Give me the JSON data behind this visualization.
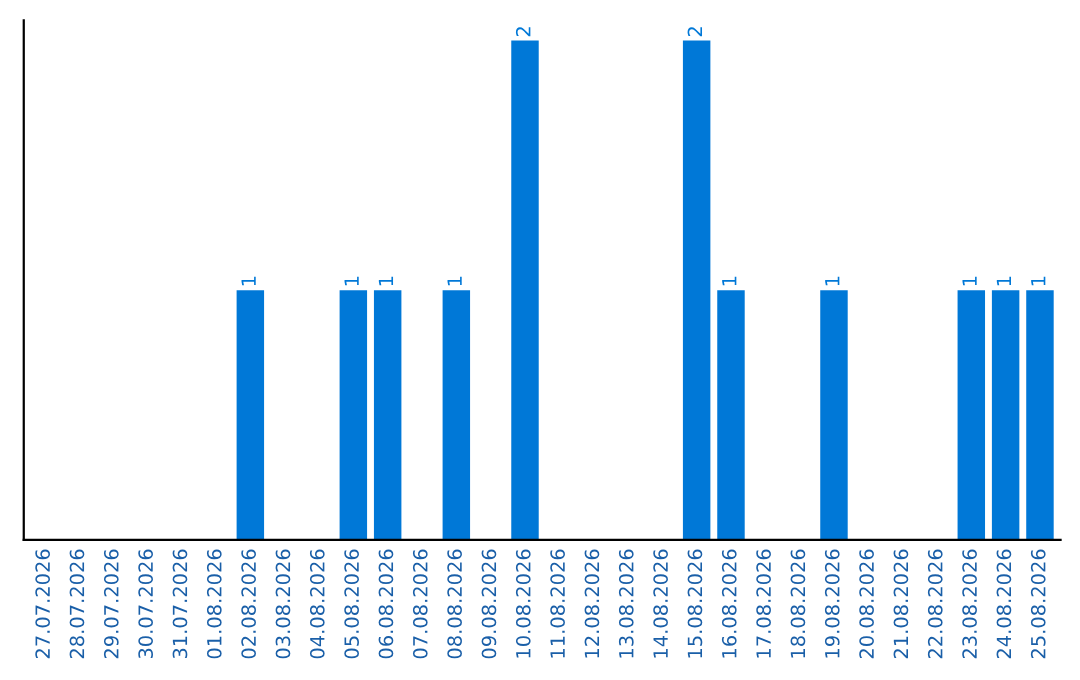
{
  "chart_data": {
    "type": "bar",
    "categories": [
      "27.07.2026",
      "28.07.2026",
      "29.07.2026",
      "30.07.2026",
      "31.07.2026",
      "01.08.2026",
      "02.08.2026",
      "03.08.2026",
      "04.08.2026",
      "05.08.2026",
      "06.08.2026",
      "07.08.2026",
      "08.08.2026",
      "09.08.2026",
      "10.08.2026",
      "11.08.2026",
      "12.08.2026",
      "13.08.2026",
      "14.08.2026",
      "15.08.2026",
      "16.08.2026",
      "17.08.2026",
      "18.08.2026",
      "19.08.2026",
      "20.08.2026",
      "21.08.2026",
      "22.08.2026",
      "23.08.2026",
      "24.08.2026",
      "25.08.2026"
    ],
    "values": [
      0,
      0,
      0,
      0,
      0,
      0,
      1,
      0,
      0,
      1,
      1,
      0,
      1,
      0,
      2,
      0,
      0,
      0,
      0,
      2,
      1,
      0,
      0,
      1,
      0,
      0,
      0,
      1,
      1,
      1
    ],
    "value_labels": [
      null,
      null,
      null,
      null,
      null,
      null,
      "1",
      null,
      null,
      "1",
      "1",
      null,
      "1",
      null,
      "2",
      null,
      null,
      null,
      null,
      "2",
      "1",
      null,
      null,
      "1",
      null,
      null,
      null,
      "1",
      "1",
      "1"
    ],
    "color": "#0078d7",
    "ylim": [
      0,
      2.08
    ],
    "tick_labels": "x",
    "grid": false,
    "legend": false
  }
}
